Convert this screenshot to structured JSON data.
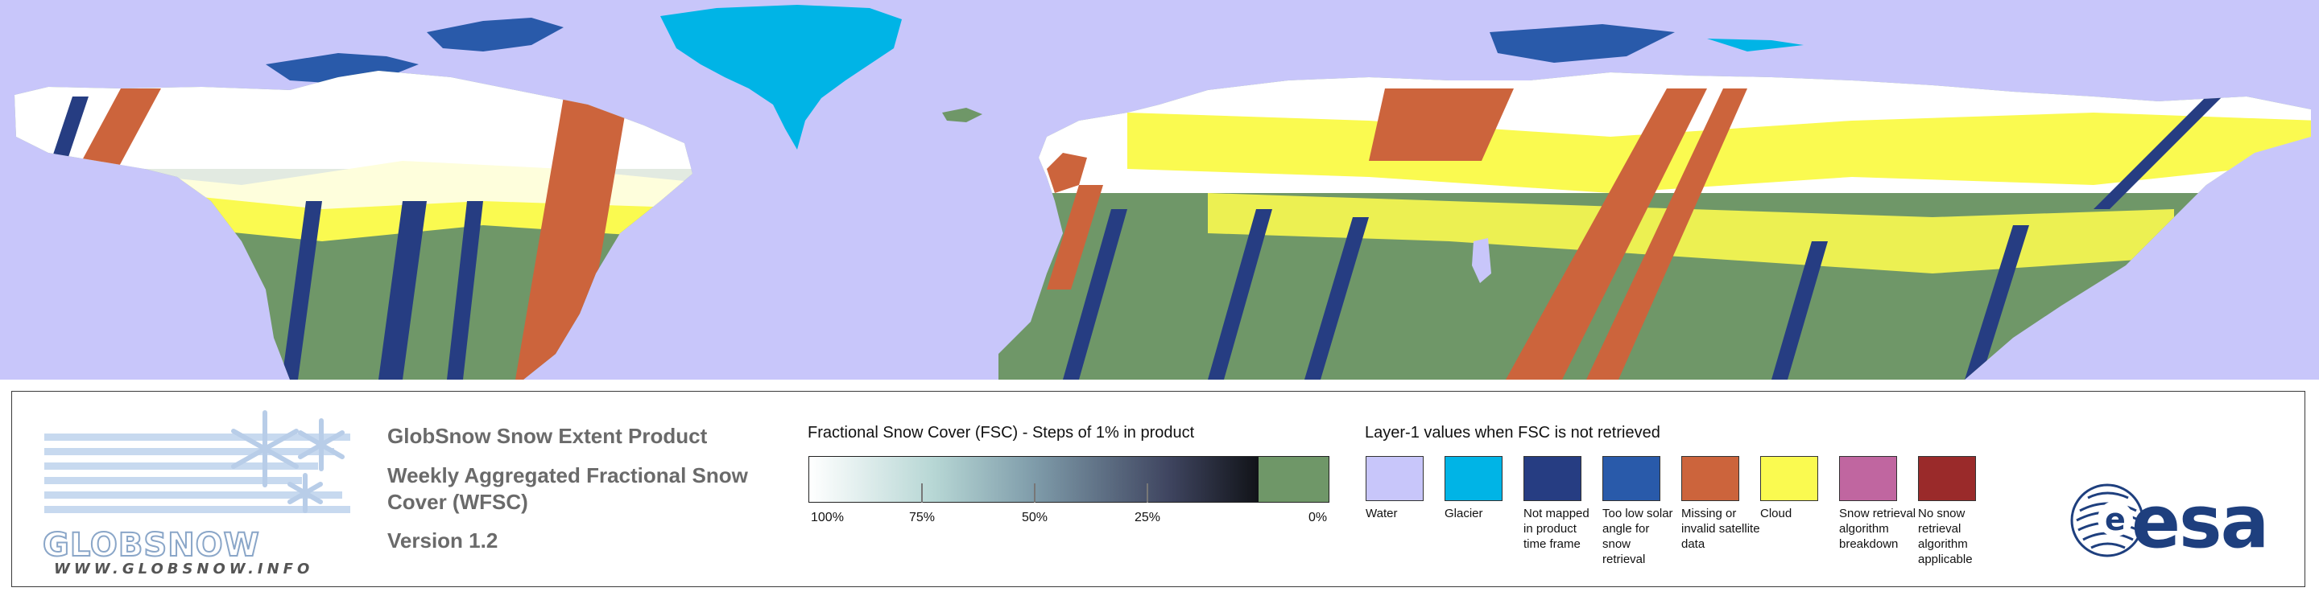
{
  "map": {
    "colors": {
      "water": "#c8c6fa",
      "glacier": "#00b4e6",
      "not_mapped": "#263d82",
      "low_sun": "#295aaa",
      "missing": "#cc643c",
      "cloud": "#fafa50",
      "snow": "#ffffff",
      "no_snow": "#6f9768",
      "breakdown": "#c066a0",
      "not_applicable": "#9a2a2a"
    }
  },
  "logo": {
    "wordmark": "GLOBSNOW",
    "url": "WWW.GLOBSNOW.INFO"
  },
  "product": {
    "title": "GlobSnow Snow Extent Product",
    "subtitle": "Weekly Aggregated Fractional Snow Cover (WFSC)",
    "version": "Version 1.2"
  },
  "fsc": {
    "title": "Fractional Snow Cover (FSC) - Steps of 1% in product",
    "labels": [
      "100%",
      "75%",
      "50%",
      "25%",
      "0%"
    ]
  },
  "layer1": {
    "title": "Layer-1 values when FSC is not retrieved",
    "items": [
      {
        "label": "Water",
        "color": "#c8c6fa"
      },
      {
        "label": "Glacier",
        "color": "#00b4e6"
      },
      {
        "label": "Not mapped in product time frame",
        "color": "#263d82"
      },
      {
        "label": "Too low solar angle for snow retrieval",
        "color": "#295aaa"
      },
      {
        "label": "Missing or invalid satellite data",
        "color": "#cc643c"
      },
      {
        "label": "Cloud",
        "color": "#fafa50"
      },
      {
        "label": "Snow retrieval algorithm breakdown",
        "color": "#c066a0"
      },
      {
        "label": "No snow retrieval algorithm applicable",
        "color": "#9a2a2a"
      }
    ]
  },
  "esa": {
    "wordmark": "esa"
  }
}
